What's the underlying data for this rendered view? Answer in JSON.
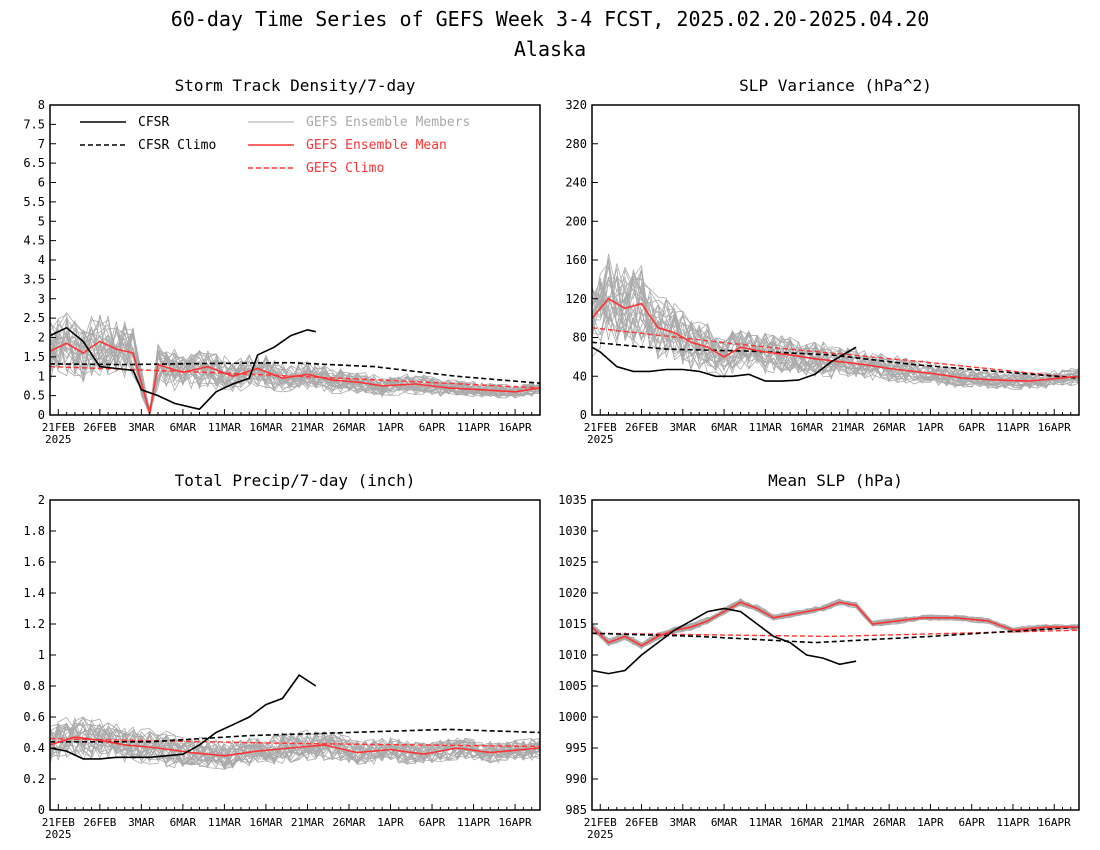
{
  "title": "60-day Time Series of GEFS Week 3-4 FCST, 2025.02.20-2025.04.20",
  "subtitle": "Alaska",
  "colors": {
    "cfsr": "#000000",
    "members": "#aaaaaa",
    "ensemble_mean": "#ff3333",
    "gefs_climo": "#ff3333"
  },
  "legend": {
    "placement": "top-left",
    "cfsr": "CFSR",
    "cfsr_climo": "CFSR Climo",
    "members": "GEFS Ensemble Members",
    "ensemble_mean": "GEFS Ensemble Mean",
    "gefs_climo": "GEFS Climo"
  },
  "x_ticks": [
    "21FEB",
    "26FEB",
    "3MAR",
    "6MAR",
    "11MAR",
    "16MAR",
    "21MAR",
    "26MAR",
    "1APR",
    "6APR",
    "11APR",
    "16APR"
  ],
  "x_tick_days": [
    1,
    6,
    11,
    16,
    21,
    26,
    31,
    36,
    41,
    46,
    51,
    56
  ],
  "x_year": "2025",
  "chart_data": [
    {
      "id": "std",
      "type": "line",
      "title": "Storm Track Density/7-day",
      "x_range": [
        "2025-02-20",
        "2025-04-20"
      ],
      "ylim": [
        0,
        8
      ],
      "yticks": [
        "0",
        "0.5",
        "1",
        "1.5",
        "2",
        "2.5",
        "3",
        "3.5",
        "4",
        "4.5",
        "5",
        "5.5",
        "6",
        "6.5",
        "7",
        "7.5",
        "8"
      ],
      "ytick_values": [
        0,
        0.5,
        1,
        1.5,
        2,
        2.5,
        3,
        3.5,
        4,
        4.5,
        5,
        5.5,
        6,
        6.5,
        7,
        7.5,
        8
      ],
      "grid": false,
      "series": [
        {
          "key": "cfsr",
          "style": "solid-black",
          "x": [
            "2025-02-20",
            "2025-02-22",
            "2025-02-24",
            "2025-02-26",
            "2025-02-28",
            "2025-03-02",
            "2025-03-03",
            "2025-03-05",
            "2025-03-07",
            "2025-03-09",
            "2025-03-10",
            "2025-03-12",
            "2025-03-14",
            "2025-03-16",
            "2025-03-17",
            "2025-03-19",
            "2025-03-21",
            "2025-03-23",
            "2025-03-24"
          ],
          "y": [
            2.05,
            2.25,
            1.9,
            1.25,
            1.2,
            1.15,
            0.65,
            0.5,
            0.3,
            0.2,
            0.15,
            0.6,
            0.8,
            0.95,
            1.55,
            1.75,
            2.05,
            2.2,
            2.15
          ]
        },
        {
          "key": "cfsr_climo",
          "style": "dashed-black",
          "x": [
            "2025-02-20",
            "2025-03-01",
            "2025-03-11",
            "2025-03-21",
            "2025-03-31",
            "2025-04-10",
            "2025-04-20"
          ],
          "y": [
            1.32,
            1.3,
            1.33,
            1.35,
            1.25,
            1.0,
            0.82
          ]
        },
        {
          "key": "ensemble_mean",
          "style": "solid-red",
          "x": [
            "2025-02-20",
            "2025-02-22",
            "2025-02-24",
            "2025-02-26",
            "2025-02-28",
            "2025-03-02",
            "2025-03-04",
            "2025-03-05",
            "2025-03-08",
            "2025-03-11",
            "2025-03-14",
            "2025-03-17",
            "2025-03-20",
            "2025-03-23",
            "2025-03-26",
            "2025-03-29",
            "2025-04-01",
            "2025-04-05",
            "2025-04-09",
            "2025-04-13",
            "2025-04-17",
            "2025-04-20"
          ],
          "y": [
            1.65,
            1.85,
            1.6,
            1.9,
            1.7,
            1.6,
            0.05,
            1.3,
            1.1,
            1.25,
            1.0,
            1.2,
            0.95,
            1.05,
            0.9,
            0.85,
            0.75,
            0.8,
            0.7,
            0.65,
            0.6,
            0.7
          ]
        },
        {
          "key": "gefs_climo",
          "style": "dashed-red",
          "x": [
            "2025-02-20",
            "2025-03-11",
            "2025-04-01",
            "2025-04-20"
          ],
          "y": [
            1.25,
            1.1,
            0.9,
            0.7
          ]
        }
      ]
    },
    {
      "id": "slpvar",
      "type": "line",
      "title": "SLP Variance (hPa^2)",
      "x_range": [
        "2025-02-20",
        "2025-04-20"
      ],
      "ylim": [
        0,
        320
      ],
      "yticks": [
        "0",
        "40",
        "80",
        "120",
        "160",
        "200",
        "240",
        "280",
        "320"
      ],
      "ytick_values": [
        0,
        40,
        80,
        120,
        160,
        200,
        240,
        280,
        320
      ],
      "grid": false,
      "series": [
        {
          "key": "cfsr",
          "style": "solid-black",
          "x": [
            "2025-02-20",
            "2025-02-21",
            "2025-02-23",
            "2025-02-25",
            "2025-02-27",
            "2025-03-01",
            "2025-03-03",
            "2025-03-05",
            "2025-03-07",
            "2025-03-09",
            "2025-03-11",
            "2025-03-13",
            "2025-03-15",
            "2025-03-17",
            "2025-03-19",
            "2025-03-21",
            "2025-03-23",
            "2025-03-24"
          ],
          "y": [
            70,
            65,
            50,
            45,
            45,
            47,
            47,
            45,
            40,
            40,
            42,
            35,
            35,
            36,
            42,
            55,
            65,
            70
          ]
        },
        {
          "key": "cfsr_climo",
          "style": "dashed-black",
          "x": [
            "2025-02-20",
            "2025-03-01",
            "2025-03-11",
            "2025-03-21",
            "2025-03-31",
            "2025-04-10",
            "2025-04-20"
          ],
          "y": [
            75,
            68,
            66,
            62,
            52,
            45,
            38
          ]
        },
        {
          "key": "ensemble_mean",
          "style": "solid-red",
          "x": [
            "2025-02-20",
            "2025-02-22",
            "2025-02-24",
            "2025-02-26",
            "2025-02-28",
            "2025-03-02",
            "2025-03-04",
            "2025-03-06",
            "2025-03-08",
            "2025-03-10",
            "2025-03-13",
            "2025-03-16",
            "2025-03-19",
            "2025-03-22",
            "2025-03-25",
            "2025-03-28",
            "2025-03-31",
            "2025-04-03",
            "2025-04-06",
            "2025-04-10",
            "2025-04-14",
            "2025-04-20"
          ],
          "y": [
            100,
            120,
            110,
            115,
            90,
            85,
            75,
            70,
            60,
            70,
            65,
            62,
            58,
            55,
            52,
            48,
            45,
            42,
            38,
            36,
            35,
            40
          ]
        },
        {
          "key": "gefs_climo",
          "style": "dashed-red",
          "x": [
            "2025-02-20",
            "2025-03-11",
            "2025-04-01",
            "2025-04-20"
          ],
          "y": [
            90,
            72,
            55,
            38
          ]
        }
      ]
    },
    {
      "id": "precip",
      "type": "line",
      "title": "Total Precip/7-day (inch)",
      "x_range": [
        "2025-02-20",
        "2025-04-20"
      ],
      "ylim": [
        0,
        2
      ],
      "yticks": [
        "0",
        "0.2",
        "0.4",
        "0.6",
        "0.8",
        "1",
        "1.2",
        "1.4",
        "1.6",
        "1.8",
        "2"
      ],
      "ytick_values": [
        0,
        0.2,
        0.4,
        0.6,
        0.8,
        1,
        1.2,
        1.4,
        1.6,
        1.8,
        2
      ],
      "grid": false,
      "series": [
        {
          "key": "cfsr",
          "style": "solid-black",
          "x": [
            "2025-02-20",
            "2025-02-22",
            "2025-02-24",
            "2025-02-26",
            "2025-02-28",
            "2025-03-02",
            "2025-03-04",
            "2025-03-06",
            "2025-03-08",
            "2025-03-10",
            "2025-03-12",
            "2025-03-14",
            "2025-03-16",
            "2025-03-18",
            "2025-03-20",
            "2025-03-22",
            "2025-03-24"
          ],
          "y": [
            0.4,
            0.38,
            0.33,
            0.33,
            0.34,
            0.34,
            0.34,
            0.35,
            0.36,
            0.42,
            0.5,
            0.55,
            0.6,
            0.68,
            0.72,
            0.87,
            0.8
          ]
        },
        {
          "key": "cfsr_climo",
          "style": "dashed-black",
          "x": [
            "2025-02-20",
            "2025-03-04",
            "2025-03-16",
            "2025-03-28",
            "2025-04-09",
            "2025-04-20"
          ],
          "y": [
            0.44,
            0.44,
            0.48,
            0.5,
            0.52,
            0.5
          ]
        },
        {
          "key": "ensemble_mean",
          "style": "solid-red",
          "x": [
            "2025-02-20",
            "2025-02-23",
            "2025-02-26",
            "2025-03-01",
            "2025-03-05",
            "2025-03-09",
            "2025-03-13",
            "2025-03-17",
            "2025-03-21",
            "2025-03-25",
            "2025-03-29",
            "2025-04-02",
            "2025-04-06",
            "2025-04-10",
            "2025-04-14",
            "2025-04-20"
          ],
          "y": [
            0.42,
            0.47,
            0.45,
            0.42,
            0.4,
            0.37,
            0.35,
            0.38,
            0.4,
            0.42,
            0.37,
            0.39,
            0.36,
            0.4,
            0.37,
            0.4
          ]
        },
        {
          "key": "gefs_climo",
          "style": "dashed-red",
          "x": [
            "2025-02-20",
            "2025-03-21",
            "2025-04-20"
          ],
          "y": [
            0.46,
            0.43,
            0.41
          ]
        }
      ]
    },
    {
      "id": "slp",
      "type": "line",
      "title": "Mean SLP (hPa)",
      "x_range": [
        "2025-02-20",
        "2025-04-20"
      ],
      "ylim": [
        985,
        1035
      ],
      "yticks": [
        "985",
        "990",
        "995",
        "1000",
        "1005",
        "1010",
        "1015",
        "1020",
        "1025",
        "1030",
        "1035"
      ],
      "ytick_values": [
        985,
        990,
        995,
        1000,
        1005,
        1010,
        1015,
        1020,
        1025,
        1030,
        1035
      ],
      "grid": false,
      "series": [
        {
          "key": "cfsr",
          "style": "solid-black",
          "x": [
            "2025-02-20",
            "2025-02-22",
            "2025-02-24",
            "2025-02-26",
            "2025-02-28",
            "2025-03-02",
            "2025-03-04",
            "2025-03-06",
            "2025-03-08",
            "2025-03-10",
            "2025-03-12",
            "2025-03-14",
            "2025-03-16",
            "2025-03-18",
            "2025-03-20",
            "2025-03-22",
            "2025-03-24"
          ],
          "y": [
            1007.5,
            1007,
            1007.5,
            1010,
            1012,
            1014,
            1015.5,
            1017,
            1017.5,
            1017,
            1015,
            1013,
            1012,
            1010,
            1009.5,
            1008.5,
            1009
          ]
        },
        {
          "key": "cfsr_climo",
          "style": "dashed-black",
          "x": [
            "2025-02-20",
            "2025-03-05",
            "2025-03-19",
            "2025-04-02",
            "2025-04-20"
          ],
          "y": [
            1013.5,
            1013,
            1012,
            1013,
            1014.5
          ]
        },
        {
          "key": "ensemble_mean",
          "style": "solid-red",
          "x": [
            "2025-02-20",
            "2025-02-22",
            "2025-02-24",
            "2025-02-26",
            "2025-02-28",
            "2025-03-02",
            "2025-03-04",
            "2025-03-06",
            "2025-03-08",
            "2025-03-10",
            "2025-03-12",
            "2025-03-14",
            "2025-03-16",
            "2025-03-18",
            "2025-03-20",
            "2025-03-22",
            "2025-03-24",
            "2025-03-26",
            "2025-03-29",
            "2025-04-01",
            "2025-04-05",
            "2025-04-09",
            "2025-04-12",
            "2025-04-16",
            "2025-04-20"
          ],
          "y": [
            1014.5,
            1012,
            1013,
            1011.5,
            1013,
            1014,
            1014.5,
            1015.5,
            1017,
            1018.5,
            1017.5,
            1016,
            1016.5,
            1017,
            1017.5,
            1018.5,
            1018,
            1015,
            1015.5,
            1016,
            1016,
            1015.5,
            1014,
            1014.5,
            1014.5
          ]
        },
        {
          "key": "gefs_climo",
          "style": "dashed-red",
          "x": [
            "2025-02-20",
            "2025-03-21",
            "2025-04-20"
          ],
          "y": [
            1013.5,
            1013,
            1014
          ]
        }
      ]
    }
  ]
}
